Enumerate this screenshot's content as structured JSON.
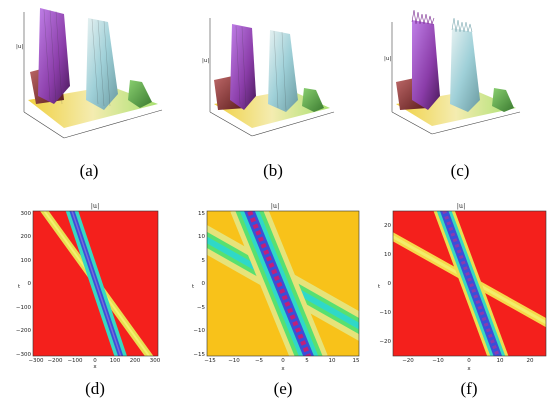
{
  "captions": [
    "(a)",
    "(b)",
    "(c)",
    "(d)",
    "(e)",
    "(f)"
  ],
  "surface_plots": [
    {
      "z_label": "|u|"
    },
    {
      "z_label": "|u|"
    },
    {
      "z_label": "|u|"
    }
  ],
  "density_plots": [
    {
      "title": "|u|",
      "x_label": "x",
      "y_label": "t",
      "x_ticks": [
        "−300",
        "−200",
        "−100",
        "0",
        "100",
        "200",
        "300"
      ],
      "y_ticks": [
        "300",
        "200",
        "100",
        "0",
        "−100",
        "−200",
        "−300"
      ]
    },
    {
      "title": "|u|",
      "x_label": "x",
      "y_label": "t",
      "x_ticks": [
        "−15",
        "−10",
        "−5",
        "0",
        "5",
        "10",
        "15"
      ],
      "y_ticks": [
        "15",
        "10",
        "5",
        "0",
        "−5",
        "−10",
        "−15"
      ]
    },
    {
      "title": "|u|",
      "x_label": "x",
      "y_label": "t",
      "x_ticks": [
        "−20",
        "−10",
        "0",
        "10",
        "20"
      ],
      "y_ticks": [
        "20",
        "10",
        "0",
        "−10",
        "−20"
      ]
    }
  ],
  "colors": {
    "background_d": "#f4201c",
    "background_e": "#f8c21a",
    "background_f": "#f4201c",
    "yellow_band": "#f3e04a",
    "cyan_band": "#30d8c0",
    "blue_core": "#3a4fd8",
    "magenta_core": "#c0207a"
  }
}
